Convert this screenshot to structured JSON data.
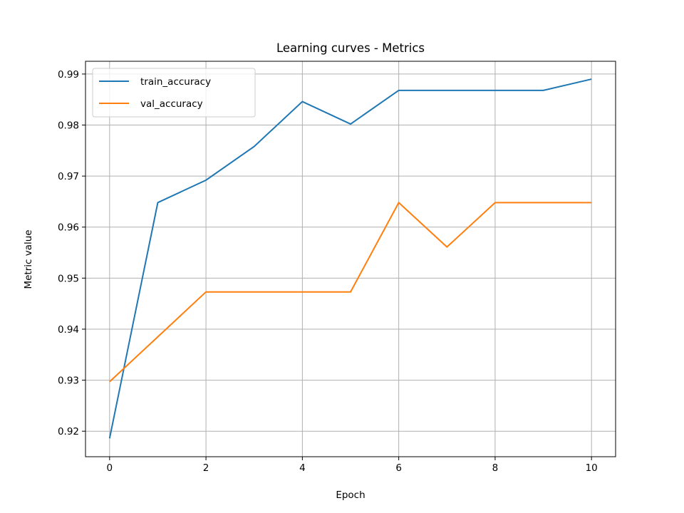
{
  "chart_data": {
    "type": "line",
    "title": "Learning curves - Metrics",
    "xlabel": "Epoch",
    "ylabel": "Metric value",
    "x": [
      0,
      1,
      2,
      3,
      4,
      5,
      6,
      7,
      8,
      9,
      10
    ],
    "xlim": [
      -0.5,
      10.5
    ],
    "ylim": [
      0.915,
      0.9925
    ],
    "xticks": [
      0,
      2,
      4,
      6,
      8,
      10
    ],
    "xtick_labels": [
      "0",
      "2",
      "4",
      "6",
      "8",
      "10"
    ],
    "yticks": [
      0.92,
      0.93,
      0.94,
      0.95,
      0.96,
      0.97,
      0.98,
      0.99
    ],
    "ytick_labels": [
      "0.92",
      "0.93",
      "0.94",
      "0.95",
      "0.96",
      "0.97",
      "0.98",
      "0.99"
    ],
    "grid": true,
    "legend_position": "top-left",
    "series": [
      {
        "name": "train_accuracy",
        "color": "#1f77b4",
        "values": [
          0.9186,
          0.9648,
          0.9692,
          0.9758,
          0.9846,
          0.9802,
          0.9868,
          0.9868,
          0.9868,
          0.9868,
          0.989
        ]
      },
      {
        "name": "val_accuracy",
        "color": "#ff7f0e",
        "values": [
          0.9297,
          0.9385,
          0.9473,
          0.9473,
          0.9473,
          0.9473,
          0.9648,
          0.9561,
          0.9648,
          0.9648,
          0.9648
        ]
      }
    ]
  }
}
